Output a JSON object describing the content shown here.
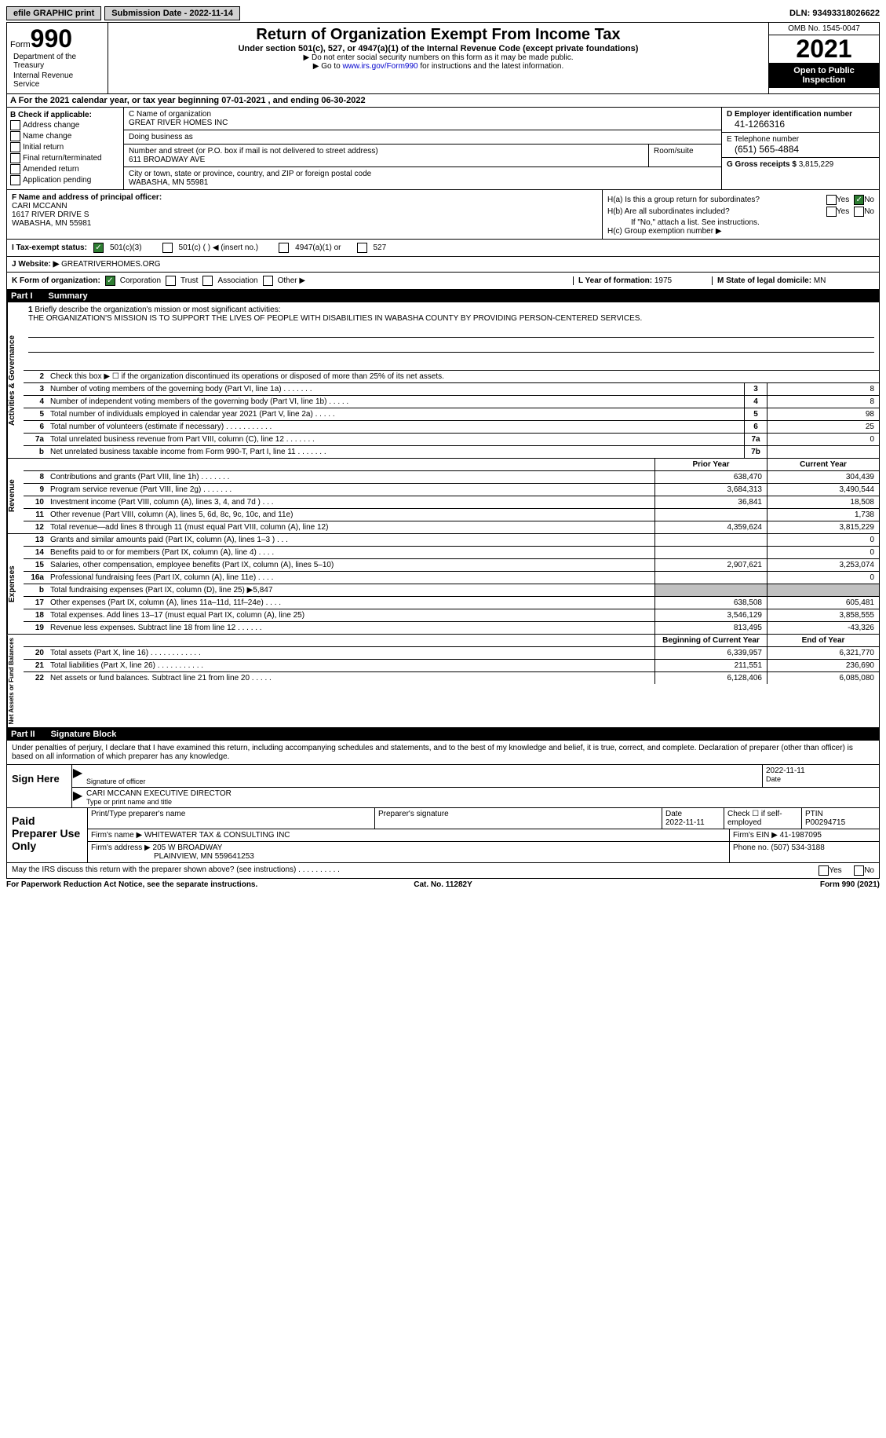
{
  "topbar": {
    "efile": "efile GRAPHIC print",
    "submission_label": "Submission Date - ",
    "submission_date": "2022-11-14",
    "dln_label": "DLN: ",
    "dln": "93493318026622"
  },
  "header": {
    "form_label": "Form",
    "form_number": "990",
    "title": "Return of Organization Exempt From Income Tax",
    "subtitle": "Under section 501(c), 527, or 4947(a)(1) of the Internal Revenue Code (except private foundations)",
    "note1": "▶ Do not enter social security numbers on this form as it may be made public.",
    "note2_pre": "▶ Go to ",
    "note2_link": "www.irs.gov/Form990",
    "note2_post": " for instructions and the latest information.",
    "omb": "OMB No. 1545-0047",
    "year": "2021",
    "open_public": "Open to Public Inspection",
    "dept": "Department of the Treasury",
    "irs": "Internal Revenue Service"
  },
  "line_a": {
    "text_pre": "A For the 2021 calendar year, or tax year beginning ",
    "begin": "07-01-2021",
    "text_mid": " , and ending ",
    "end": "06-30-2022"
  },
  "section_b": {
    "label": "B Check if applicable:",
    "opts": [
      "Address change",
      "Name change",
      "Initial return",
      "Final return/terminated",
      "Amended return",
      "Application pending"
    ]
  },
  "section_c": {
    "name_label": "C Name of organization",
    "name": "GREAT RIVER HOMES INC",
    "dba_label": "Doing business as",
    "street_label": "Number and street (or P.O. box if mail is not delivered to street address)",
    "street": "611 BROADWAY AVE",
    "room_label": "Room/suite",
    "city_label": "City or town, state or province, country, and ZIP or foreign postal code",
    "city": "WABASHA, MN  55981"
  },
  "section_d": {
    "ein_label": "D Employer identification number",
    "ein": "41-1266316",
    "phone_label": "E Telephone number",
    "phone": "(651) 565-4884",
    "gross_label": "G Gross receipts $ ",
    "gross": "3,815,229"
  },
  "section_f": {
    "label": "F  Name and address of principal officer:",
    "name": "CARI MCCANN",
    "addr1": "1617 RIVER DRIVE S",
    "addr2": "WABASHA, MN  55981"
  },
  "section_h": {
    "ha_label": "H(a)  Is this a group return for subordinates?",
    "hb_label": "H(b)  Are all subordinates included?",
    "hb_note": "If \"No,\" attach a list. See instructions.",
    "hc_label": "H(c)  Group exemption number ▶",
    "yes": "Yes",
    "no": "No"
  },
  "row_i": {
    "label": "I  Tax-exempt status:",
    "o1": "501(c)(3)",
    "o2": "501(c) (  ) ◀ (insert no.)",
    "o3": "4947(a)(1) or",
    "o4": "527"
  },
  "row_j": {
    "label": "J  Website: ▶",
    "value": "  GREATRIVERHOMES.ORG"
  },
  "row_k": {
    "label": "K Form of organization:",
    "o1": "Corporation",
    "o2": "Trust",
    "o3": "Association",
    "o4": "Other ▶",
    "l_label": "L Year of formation: ",
    "l_val": "1975",
    "m_label": "M State of legal domicile: ",
    "m_val": "MN"
  },
  "part1": {
    "label": "Part I",
    "title": "Summary"
  },
  "mission": {
    "num": "1",
    "label": "Briefly describe the organization's mission or most significant activities:",
    "text": "THE ORGANIZATION'S MISSION IS TO SUPPORT THE LIVES OF PEOPLE WITH DISABILITIES IN WABASHA COUNTY BY PROVIDING PERSON-CENTERED SERVICES."
  },
  "summary": {
    "line2": "Check this box ▶ ☐  if the organization discontinued its operations or disposed of more than 25% of its net assets.",
    "gov_label": "Activities & Governance",
    "rev_label": "Revenue",
    "exp_label": "Expenses",
    "net_label": "Net Assets or Fund Balances",
    "prior_year": "Prior Year",
    "current_year": "Current Year",
    "begin_year": "Beginning of Current Year",
    "end_year": "End of Year",
    "rows_gov": [
      {
        "n": "3",
        "d": "Number of voting members of the governing body (Part VI, line 1a)   .    .    .    .    .    .    .",
        "b": "3",
        "v": "8"
      },
      {
        "n": "4",
        "d": "Number of independent voting members of the governing body (Part VI, line 1b)  .    .    .    .    .",
        "b": "4",
        "v": "8"
      },
      {
        "n": "5",
        "d": "Total number of individuals employed in calendar year 2021 (Part V, line 2a)   .    .    .    .    .",
        "b": "5",
        "v": "98"
      },
      {
        "n": "6",
        "d": "Total number of volunteers (estimate if necessary)    .    .    .    .    .    .    .    .    .    .    .",
        "b": "6",
        "v": "25"
      },
      {
        "n": "7a",
        "d": "Total unrelated business revenue from Part VIII, column (C), line 12   .    .    .    .    .    .    .",
        "b": "7a",
        "v": "0"
      },
      {
        "n": "b",
        "d": "Net unrelated business taxable income from Form 990-T, Part I, line 11  .    .    .    .    .    .    .",
        "b": "7b",
        "v": ""
      }
    ],
    "rows_rev": [
      {
        "n": "8",
        "d": "Contributions and grants (Part VIII, line 1h)   .    .    .    .    .    .    .",
        "p": "638,470",
        "c": "304,439"
      },
      {
        "n": "9",
        "d": "Program service revenue (Part VIII, line 2g)   .    .    .    .    .    .    .",
        "p": "3,684,313",
        "c": "3,490,544"
      },
      {
        "n": "10",
        "d": "Investment income (Part VIII, column (A), lines 3, 4, and 7d )   .    .    .",
        "p": "36,841",
        "c": "18,508"
      },
      {
        "n": "11",
        "d": "Other revenue (Part VIII, column (A), lines 5, 6d, 8c, 9c, 10c, and 11e)",
        "p": "",
        "c": "1,738"
      },
      {
        "n": "12",
        "d": "Total revenue—add lines 8 through 11 (must equal Part VIII, column (A), line 12)",
        "p": "4,359,624",
        "c": "3,815,229"
      }
    ],
    "rows_exp": [
      {
        "n": "13",
        "d": "Grants and similar amounts paid (Part IX, column (A), lines 1–3 )  .    .    .",
        "p": "",
        "c": "0"
      },
      {
        "n": "14",
        "d": "Benefits paid to or for members (Part IX, column (A), line 4)   .    .    .    .",
        "p": "",
        "c": "0"
      },
      {
        "n": "15",
        "d": "Salaries, other compensation, employee benefits (Part IX, column (A), lines 5–10)",
        "p": "2,907,621",
        "c": "3,253,074"
      },
      {
        "n": "16a",
        "d": "Professional fundraising fees (Part IX, column (A), line 11e)   .    .    .    .",
        "p": "",
        "c": "0"
      },
      {
        "n": "b",
        "d": "Total fundraising expenses (Part IX, column (D), line 25) ▶5,847",
        "p": "gray",
        "c": "gray"
      },
      {
        "n": "17",
        "d": "Other expenses (Part IX, column (A), lines 11a–11d, 11f–24e)   .    .    .    .",
        "p": "638,508",
        "c": "605,481"
      },
      {
        "n": "18",
        "d": "Total expenses. Add lines 13–17 (must equal Part IX, column (A), line 25)",
        "p": "3,546,129",
        "c": "3,858,555"
      },
      {
        "n": "19",
        "d": "Revenue less expenses. Subtract line 18 from line 12  .    .    .    .    .    .",
        "p": "813,495",
        "c": "-43,326"
      }
    ],
    "rows_net": [
      {
        "n": "20",
        "d": "Total assets (Part X, line 16)  .    .    .    .    .    .    .    .    .    .    .    .",
        "p": "6,339,957",
        "c": "6,321,770"
      },
      {
        "n": "21",
        "d": "Total liabilities (Part X, line 26)  .    .    .    .    .    .    .    .    .    .    .",
        "p": "211,551",
        "c": "236,690"
      },
      {
        "n": "22",
        "d": "Net assets or fund balances. Subtract line 21 from line 20  .    .    .    .    .",
        "p": "6,128,406",
        "c": "6,085,080"
      }
    ]
  },
  "part2": {
    "label": "Part II",
    "title": "Signature Block",
    "decl": "Under penalties of perjury, I declare that I have examined this return, including accompanying schedules and statements, and to the best of my knowledge and belief, it is true, correct, and complete. Declaration of preparer (other than officer) is based on all information of which preparer has any knowledge.",
    "sign_here": "Sign Here",
    "sig_officer": "Signature of officer",
    "sig_date": "2022-11-11",
    "date_label": "Date",
    "officer_name": "CARI MCCANN  EXECUTIVE DIRECTOR",
    "type_name": "Type or print name and title"
  },
  "paid": {
    "label": "Paid Preparer Use Only",
    "print_label": "Print/Type preparer's name",
    "sig_label": "Preparer's signature",
    "date_label": "Date",
    "date": "2022-11-11",
    "check_label": "Check ☐ if self-employed",
    "ptin_label": "PTIN",
    "ptin": "P00294715",
    "firm_name_label": "Firm's name    ▶ ",
    "firm_name": "WHITEWATER TAX & CONSULTING INC",
    "firm_ein_label": "Firm's EIN ▶ ",
    "firm_ein": "41-1987095",
    "firm_addr_label": "Firm's address ▶ ",
    "firm_addr": "205 W BROADWAY",
    "firm_addr2": "PLAINVIEW, MN  559641253",
    "phone_label": "Phone no. ",
    "phone": "(507) 534-3188"
  },
  "discuss": {
    "q": "May the IRS discuss this return with the preparer shown above? (see instructions)   .    .    .    .    .    .    .    .    .    .",
    "yes": "Yes",
    "no": "No"
  },
  "footer": {
    "left": "For Paperwork Reduction Act Notice, see the separate instructions.",
    "mid": "Cat. No. 11282Y",
    "right": "Form 990 (2021)"
  }
}
